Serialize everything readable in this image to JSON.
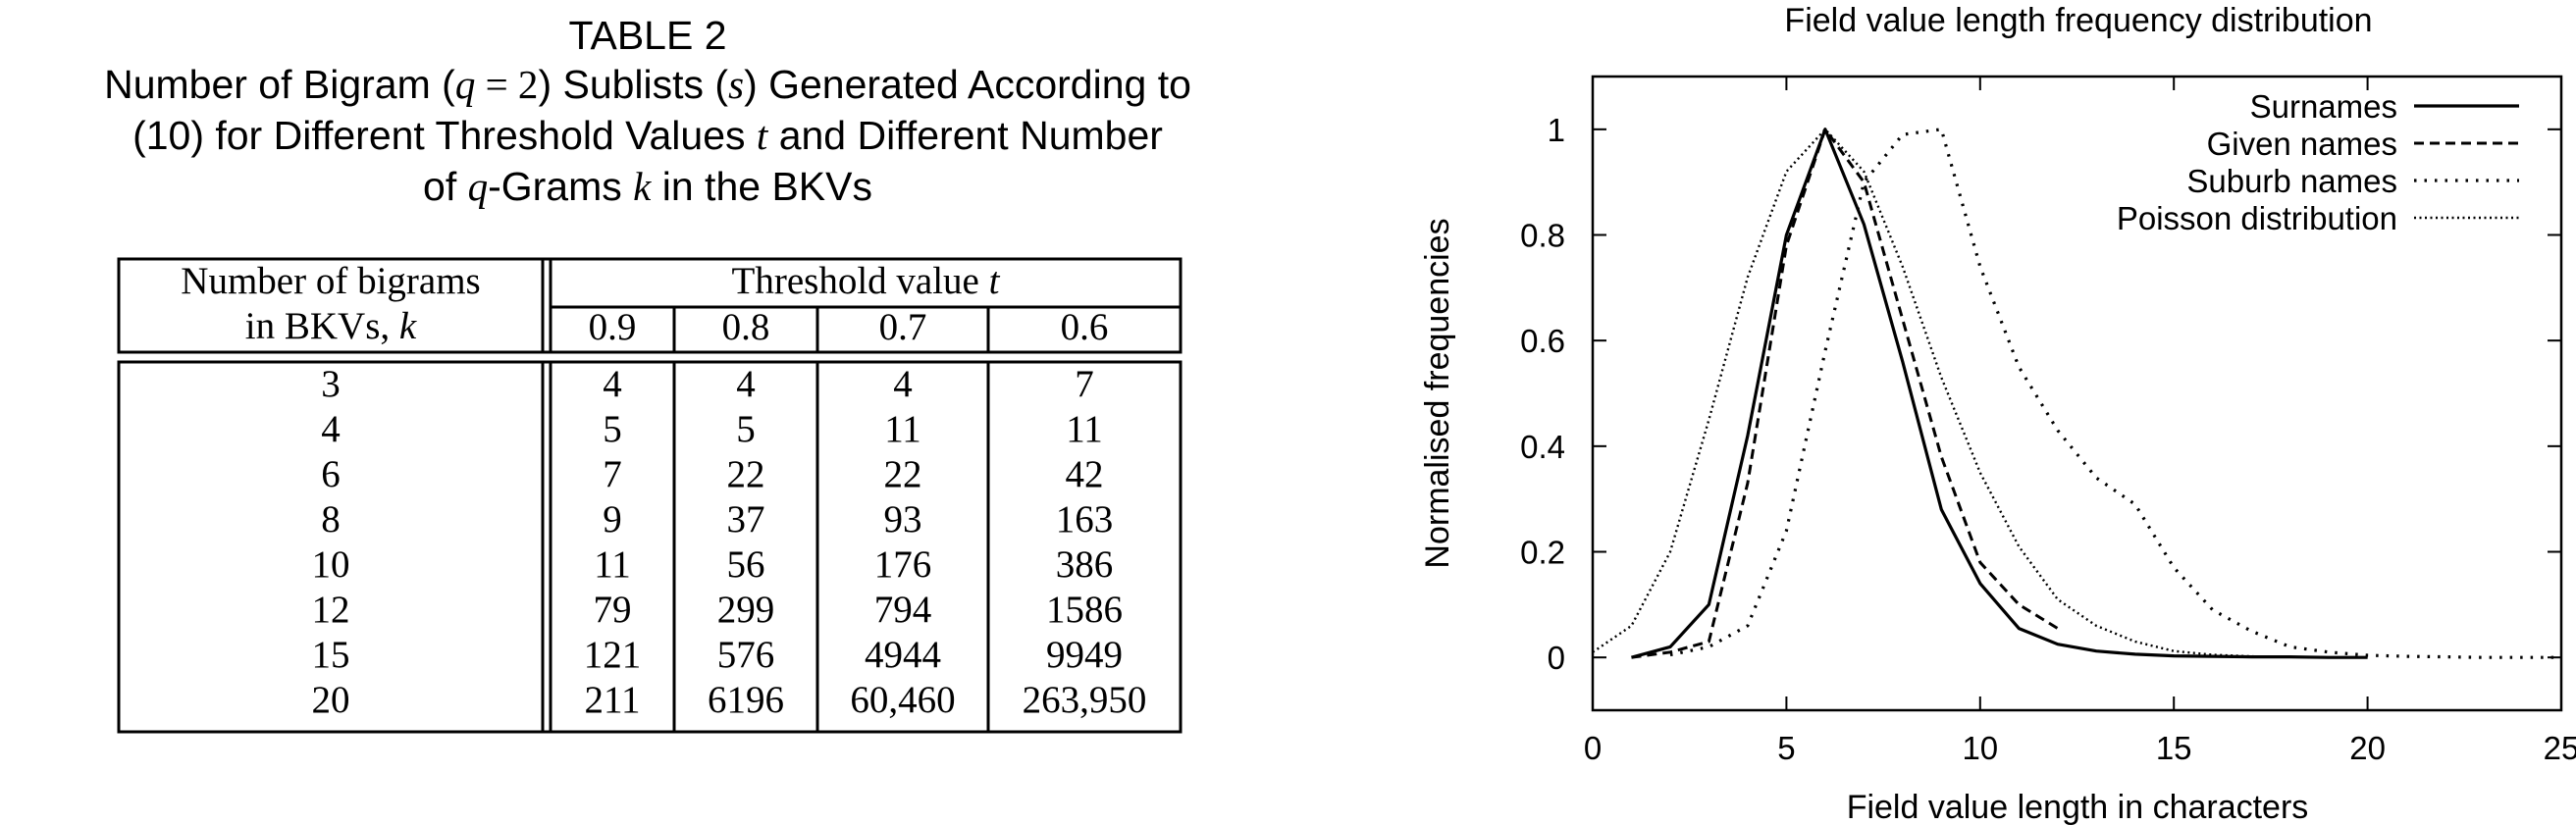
{
  "table": {
    "label": "TABLE 2",
    "caption": {
      "l1_a": "Number of Bigram (",
      "l1_q": "q",
      "l1_eq": " = 2",
      "l1_b": ") Sublists (",
      "l1_s": "s",
      "l1_c": ") Generated According to",
      "l2_a": "(10) for Different Threshold Values ",
      "l2_t": "t",
      "l2_b": " and Different Number",
      "l3_a": "of ",
      "l3_q": "q",
      "l3_b": "-Grams ",
      "l3_k": "k",
      "l3_c": " in the BKVs"
    },
    "row_header_line1": "Number of bigrams",
    "row_header_line2": "in BKVs, ",
    "row_header_var": "k",
    "col_group_header": "Threshold value ",
    "col_group_var": "t",
    "columns": [
      "0.9",
      "0.8",
      "0.7",
      "0.6"
    ],
    "rows": [
      {
        "k": "3",
        "values": [
          "4",
          "4",
          "4",
          "7"
        ]
      },
      {
        "k": "4",
        "values": [
          "5",
          "5",
          "11",
          "11"
        ]
      },
      {
        "k": "6",
        "values": [
          "7",
          "22",
          "22",
          "42"
        ]
      },
      {
        "k": "8",
        "values": [
          "9",
          "37",
          "93",
          "163"
        ]
      },
      {
        "k": "10",
        "values": [
          "11",
          "56",
          "176",
          "386"
        ]
      },
      {
        "k": "12",
        "values": [
          "79",
          "299",
          "794",
          "1586"
        ]
      },
      {
        "k": "15",
        "values": [
          "121",
          "576",
          "4944",
          "9949"
        ]
      },
      {
        "k": "20",
        "values": [
          "211",
          "6196",
          "60,460",
          "263,950"
        ]
      }
    ]
  },
  "chart_data": {
    "type": "line",
    "title": "Field value length frequency distribution",
    "xlabel": "Field value length in characters",
    "ylabel": "Normalised frequencies",
    "xlim": [
      0,
      25
    ],
    "ylim": [
      -0.1,
      1.1
    ],
    "xticks": [
      "0",
      "5",
      "10",
      "15",
      "20",
      "25"
    ],
    "yticks": [
      "0",
      "0.2",
      "0.4",
      "0.6",
      "0.8",
      "1"
    ],
    "legend_position": "top-right",
    "grid": false,
    "series": [
      {
        "name": "Surnames",
        "style": "solid",
        "x": [
          1,
          2,
          3,
          4,
          5,
          6,
          7,
          8,
          9,
          10,
          11,
          12,
          13,
          14,
          15,
          16,
          17,
          18,
          19,
          20
        ],
        "y": [
          0.0,
          0.02,
          0.1,
          0.42,
          0.8,
          1.0,
          0.82,
          0.56,
          0.28,
          0.14,
          0.055,
          0.025,
          0.012,
          0.006,
          0.003,
          0.002,
          0.001,
          0.001,
          0.0,
          0.0
        ]
      },
      {
        "name": "Given names",
        "style": "dashed",
        "x": [
          1,
          2,
          3,
          4,
          5,
          6,
          7,
          8,
          9,
          10,
          11,
          12
        ],
        "y": [
          0.0,
          0.01,
          0.03,
          0.33,
          0.78,
          1.0,
          0.9,
          0.64,
          0.38,
          0.18,
          0.1,
          0.055
        ]
      },
      {
        "name": "Suburb names",
        "style": "dotted",
        "x": [
          2,
          3,
          4,
          5,
          6,
          7,
          8,
          9,
          10,
          11,
          12,
          13,
          14,
          15,
          16,
          17,
          18,
          19,
          20,
          21,
          22,
          23,
          24,
          25
        ],
        "y": [
          0.005,
          0.02,
          0.06,
          0.24,
          0.58,
          0.9,
          0.99,
          1.0,
          0.74,
          0.55,
          0.43,
          0.34,
          0.29,
          0.17,
          0.09,
          0.05,
          0.02,
          0.01,
          0.004,
          0.002,
          0.001,
          0.0,
          0.0,
          0.0
        ]
      },
      {
        "name": "Poisson distribution",
        "style": "densely-dotted",
        "x": [
          0,
          1,
          2,
          3,
          4,
          5,
          6,
          7,
          8,
          9,
          10,
          11,
          12,
          13,
          14,
          15,
          16,
          17,
          18,
          19,
          20
        ],
        "y": [
          0.01,
          0.06,
          0.2,
          0.45,
          0.72,
          0.92,
          1.0,
          0.92,
          0.74,
          0.53,
          0.35,
          0.21,
          0.11,
          0.06,
          0.03,
          0.012,
          0.005,
          0.002,
          0.001,
          0.0,
          0.0
        ]
      }
    ]
  }
}
